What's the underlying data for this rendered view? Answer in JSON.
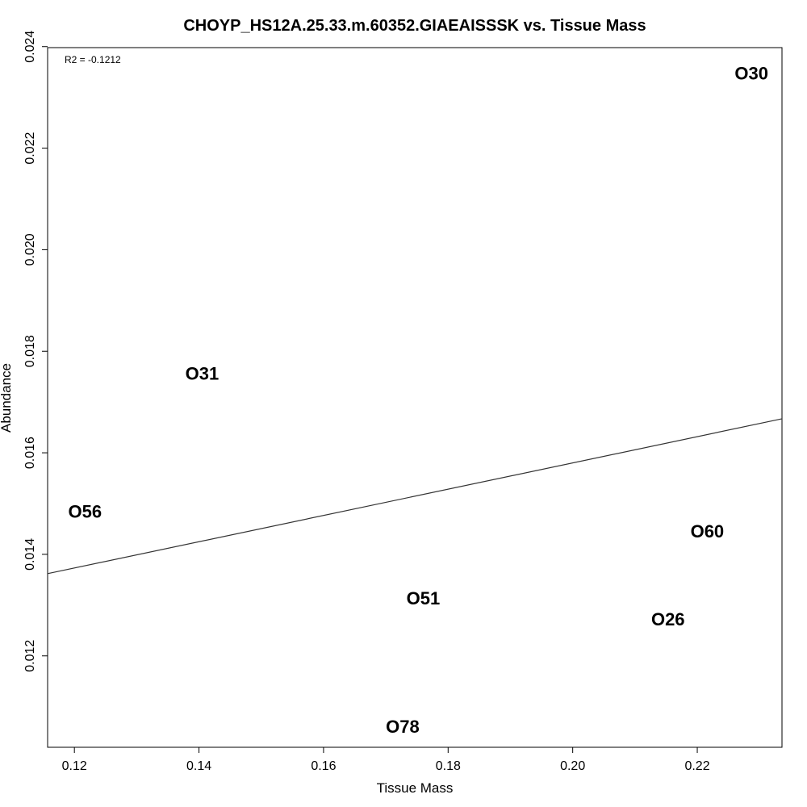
{
  "chart_data": {
    "type": "scatter",
    "title": "CHOYP_HS12A.25.33.m.60352.GIAEAISSSK vs. Tissue Mass",
    "xlabel": "Tissue Mass",
    "ylabel": "Abundance",
    "xlim": [
      0.1157,
      0.2336
    ],
    "ylim": [
      0.0102,
      0.02398
    ],
    "x_ticks": [
      0.12,
      0.14,
      0.16,
      0.18,
      0.2,
      0.22
    ],
    "x_tick_labels": [
      "0.12",
      "0.14",
      "0.16",
      "0.18",
      "0.20",
      "0.22"
    ],
    "y_ticks": [
      0.012,
      0.014,
      0.016,
      0.018,
      0.02,
      0.022,
      0.024
    ],
    "y_tick_labels": [
      "0.012",
      "0.014",
      "0.016",
      "0.018",
      "0.020",
      "0.022",
      "0.024"
    ],
    "grid": false,
    "annotation": "R2 = -0.1212",
    "points": [
      {
        "label": "O30",
        "x": 0.2287,
        "y": 0.02348
      },
      {
        "label": "O31",
        "x": 0.1405,
        "y": 0.01757
      },
      {
        "label": "O56",
        "x": 0.1217,
        "y": 0.01485
      },
      {
        "label": "O60",
        "x": 0.2216,
        "y": 0.01446
      },
      {
        "label": "O51",
        "x": 0.176,
        "y": 0.01314
      },
      {
        "label": "O26",
        "x": 0.2153,
        "y": 0.01273
      },
      {
        "label": "O78",
        "x": 0.1727,
        "y": 0.01061
      }
    ],
    "fit_line": {
      "x": [
        0.1157,
        0.2336
      ],
      "y": [
        0.01362,
        0.01667
      ]
    }
  }
}
